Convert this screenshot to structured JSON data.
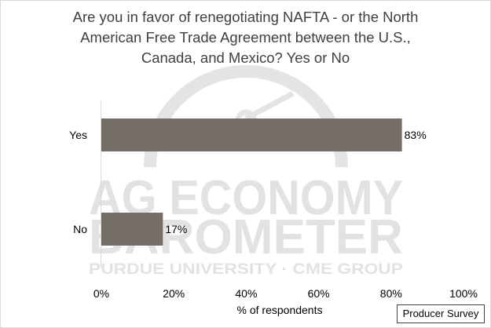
{
  "chart_data": {
    "type": "bar",
    "orientation": "horizontal",
    "title": "Are you in favor of renegotiating NAFTA - or the North\nAmerican Free Trade Agreement between the U.S.,\nCanada, and Mexico? Yes or No",
    "categories": [
      "Yes",
      "No"
    ],
    "values": [
      83,
      17
    ],
    "data_labels": [
      "83%",
      "17%"
    ],
    "xlabel": "% of respondents",
    "xlim": [
      0,
      100
    ],
    "x_ticks": [
      0,
      20,
      40,
      60,
      80,
      100
    ],
    "x_tick_labels": [
      "0%",
      "20%",
      "40%",
      "60%",
      "80%",
      "100%"
    ],
    "grid": false,
    "legend": "none",
    "bar_color": "#756e67"
  },
  "note": "Producer Survey",
  "watermark": {
    "line1": "AG ECONOMY",
    "line2": "BAROMETER",
    "line3": "PURDUE UNIVERSITY · CME GROUP",
    "color": "#e2e2e2"
  }
}
